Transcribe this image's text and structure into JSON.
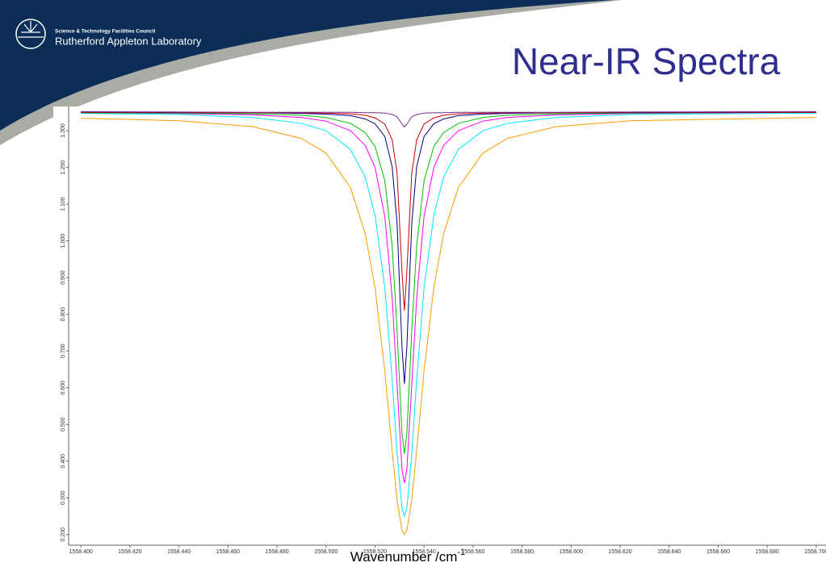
{
  "header": {
    "org": "Science & Technology Facilities Council",
    "lab": "Rutherford Appleton Laboratory"
  },
  "chart_data": {
    "type": "line",
    "title": "Near-IR Spectra",
    "xlabel": {
      "text": "Wavenumber /cm",
      "superscript": "-1"
    },
    "x": [
      1558.4,
      1558.44,
      1558.47,
      1558.49,
      1558.5,
      1558.51,
      1558.516,
      1558.52,
      1558.524,
      1558.527,
      1558.529,
      1558.531,
      1558.532,
      1558.533,
      1558.535,
      1558.537,
      1558.54,
      1558.544,
      1558.548,
      1558.554,
      1558.564,
      1558.574,
      1558.594,
      1558.624,
      1558.7
    ],
    "series": [
      {
        "color": "#ff9900",
        "values": [
          1.334,
          1.327,
          1.311,
          1.279,
          1.239,
          1.145,
          1.02,
          0.873,
          0.645,
          0.428,
          0.294,
          0.211,
          0.2,
          0.211,
          0.294,
          0.428,
          0.645,
          0.873,
          1.02,
          1.145,
          1.239,
          1.279,
          1.311,
          1.327,
          1.336
        ]
      },
      {
        "color": "#00e5ff",
        "values": [
          1.347,
          1.344,
          1.336,
          1.32,
          1.3,
          1.249,
          1.174,
          1.07,
          0.873,
          0.622,
          0.421,
          0.272,
          0.25,
          0.272,
          0.421,
          0.622,
          0.873,
          1.07,
          1.174,
          1.249,
          1.3,
          1.32,
          1.336,
          1.344,
          1.348
        ]
      },
      {
        "color": "#ff00ff",
        "values": [
          1.349,
          1.347,
          1.343,
          1.336,
          1.326,
          1.3,
          1.26,
          1.2,
          1.066,
          0.845,
          0.608,
          0.378,
          0.34,
          0.378,
          0.608,
          0.845,
          1.066,
          1.2,
          1.26,
          1.3,
          1.326,
          1.336,
          1.343,
          1.347,
          1.35
        ]
      },
      {
        "color": "#00c000",
        "values": [
          1.349,
          1.348,
          1.346,
          1.342,
          1.336,
          1.32,
          1.295,
          1.257,
          1.164,
          0.987,
          0.755,
          0.475,
          0.42,
          0.475,
          0.755,
          0.987,
          1.164,
          1.257,
          1.295,
          1.32,
          1.336,
          1.342,
          1.346,
          1.348,
          1.35
        ]
      },
      {
        "color": "#000080",
        "values": [
          1.35,
          1.349,
          1.349,
          1.347,
          1.345,
          1.341,
          1.332,
          1.319,
          1.284,
          1.202,
          1.047,
          0.712,
          0.61,
          0.712,
          1.047,
          1.202,
          1.284,
          1.319,
          1.332,
          1.341,
          1.345,
          1.347,
          1.349,
          1.349,
          1.35
        ]
      },
      {
        "color": "#cc0000",
        "values": [
          1.35,
          1.35,
          1.349,
          1.349,
          1.348,
          1.346,
          1.342,
          1.335,
          1.318,
          1.275,
          1.184,
          0.918,
          0.81,
          0.918,
          1.184,
          1.275,
          1.318,
          1.335,
          1.342,
          1.346,
          1.348,
          1.349,
          1.349,
          1.35,
          1.35
        ]
      },
      {
        "color": "#7a2a9a",
        "values": [
          1.352,
          1.351,
          1.35,
          1.35,
          1.35,
          1.35,
          1.349,
          1.349,
          1.348,
          1.344,
          1.338,
          1.318,
          1.31,
          1.318,
          1.338,
          1.344,
          1.348,
          1.349,
          1.349,
          1.35,
          1.35,
          1.35,
          1.35,
          1.351,
          1.352
        ]
      }
    ],
    "xlim": [
      1558.395,
      1558.704
    ],
    "ylim": [
      0.171,
      1.366
    ],
    "xticks": [
      {
        "value": 1558.4,
        "label": "1558.400"
      },
      {
        "value": 1558.42,
        "label": "1558.420"
      },
      {
        "value": 1558.44,
        "label": "1558.440"
      },
      {
        "value": 1558.46,
        "label": "1558.460"
      },
      {
        "value": 1558.48,
        "label": "1558.480"
      },
      {
        "value": 1558.5,
        "label": "1558.500"
      },
      {
        "value": 1558.52,
        "label": "1558.520"
      },
      {
        "value": 1558.54,
        "label": "1558.540"
      },
      {
        "value": 1558.56,
        "label": "1558.560"
      },
      {
        "value": 1558.58,
        "label": "1558.580"
      },
      {
        "value": 1558.6,
        "label": "1558.600"
      },
      {
        "value": 1558.62,
        "label": "1558.620"
      },
      {
        "value": 1558.64,
        "label": "1558.640"
      },
      {
        "value": 1558.66,
        "label": "1558.660"
      },
      {
        "value": 1558.68,
        "label": "1558.680"
      },
      {
        "value": 1558.7,
        "label": "1558.700"
      }
    ],
    "yticks": [
      {
        "value": 0.2,
        "label": "0.200"
      },
      {
        "value": 0.3,
        "label": "0.300"
      },
      {
        "value": 0.4,
        "label": "0.400"
      },
      {
        "value": 0.5,
        "label": "0.500"
      },
      {
        "value": 0.6,
        "label": "0.600"
      },
      {
        "value": 0.7,
        "label": "0.700"
      },
      {
        "value": 0.8,
        "label": "0.800"
      },
      {
        "value": 0.9,
        "label": "0.900"
      },
      {
        "value": 1.0,
        "label": "1.000"
      },
      {
        "value": 1.1,
        "label": "1.100"
      },
      {
        "value": 1.2,
        "label": "1.200"
      },
      {
        "value": 1.3,
        "label": "1.300"
      }
    ]
  }
}
